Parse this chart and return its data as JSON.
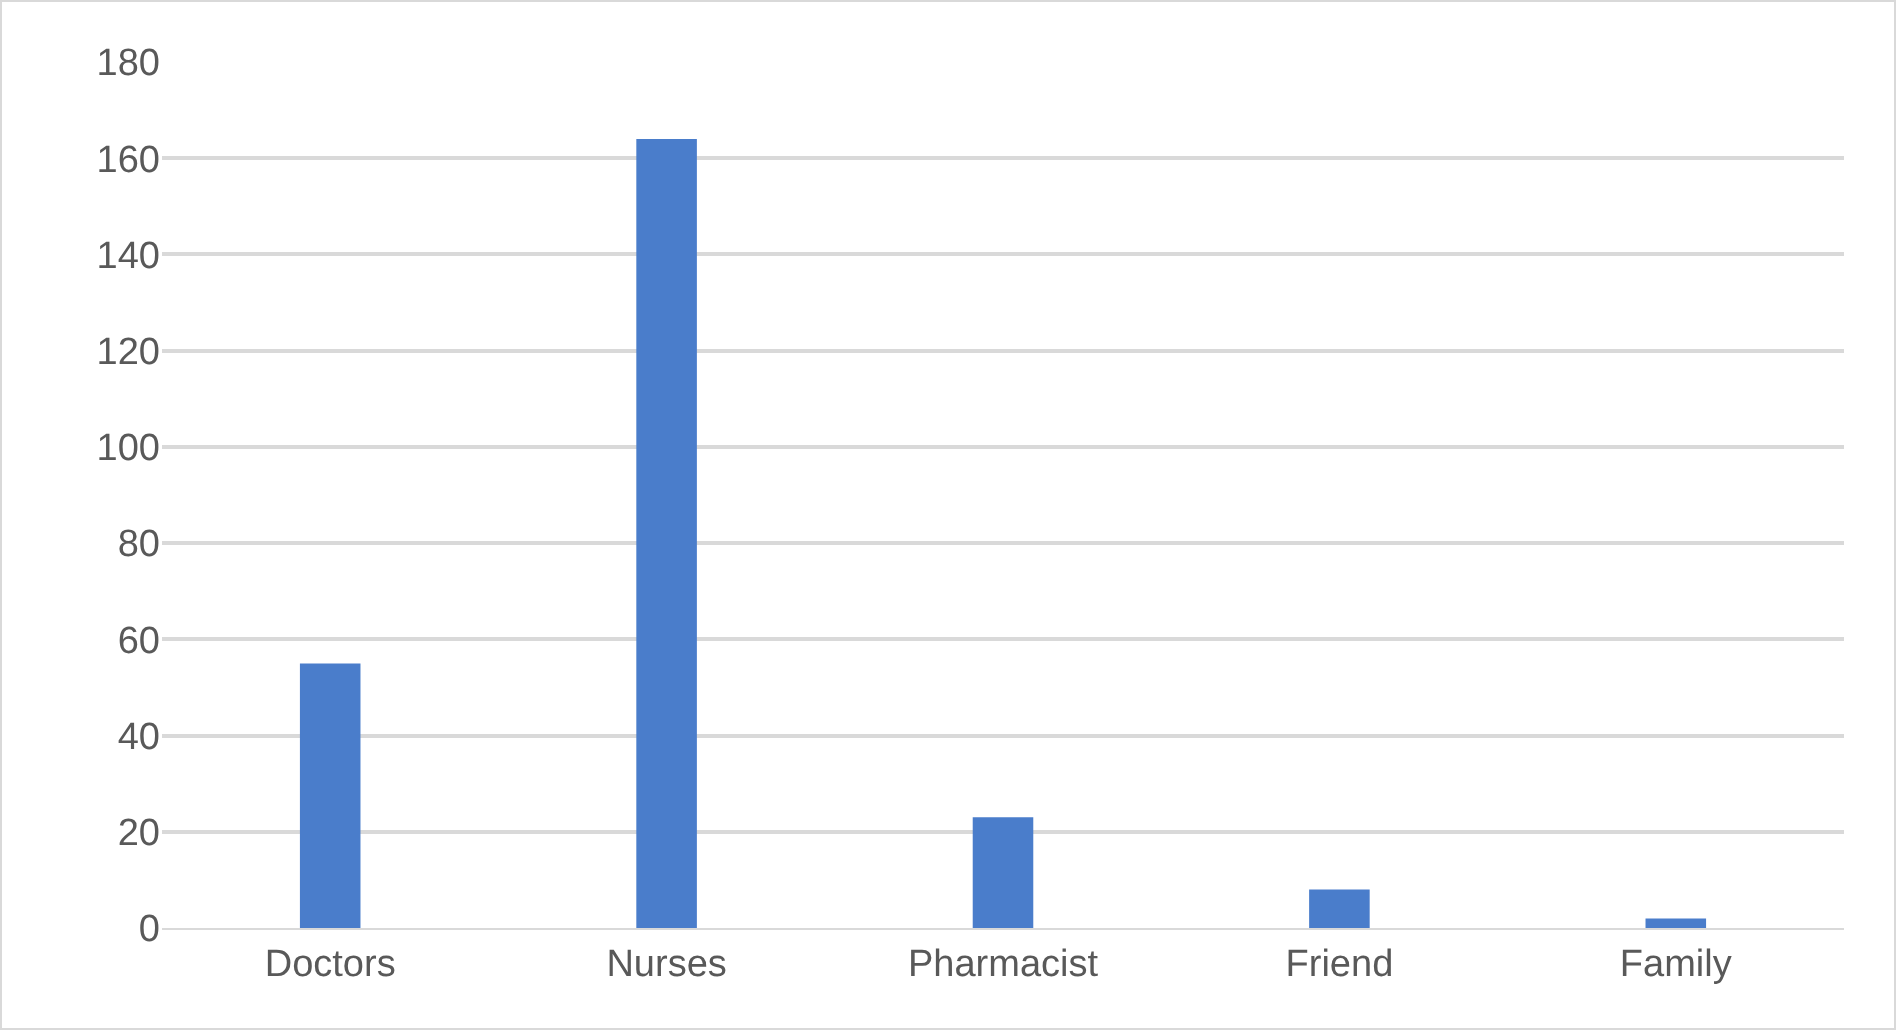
{
  "chart_data": {
    "type": "bar",
    "categories": [
      "Doctors",
      "Nurses",
      "Pharmacist",
      "Friend",
      "Family"
    ],
    "values": [
      55,
      164,
      23,
      8,
      2
    ],
    "color": "#4a7dcb",
    "ylim": [
      0,
      180
    ],
    "yticks": [
      0,
      20,
      40,
      60,
      80,
      100,
      120,
      140,
      160,
      180
    ],
    "grid": "y"
  }
}
